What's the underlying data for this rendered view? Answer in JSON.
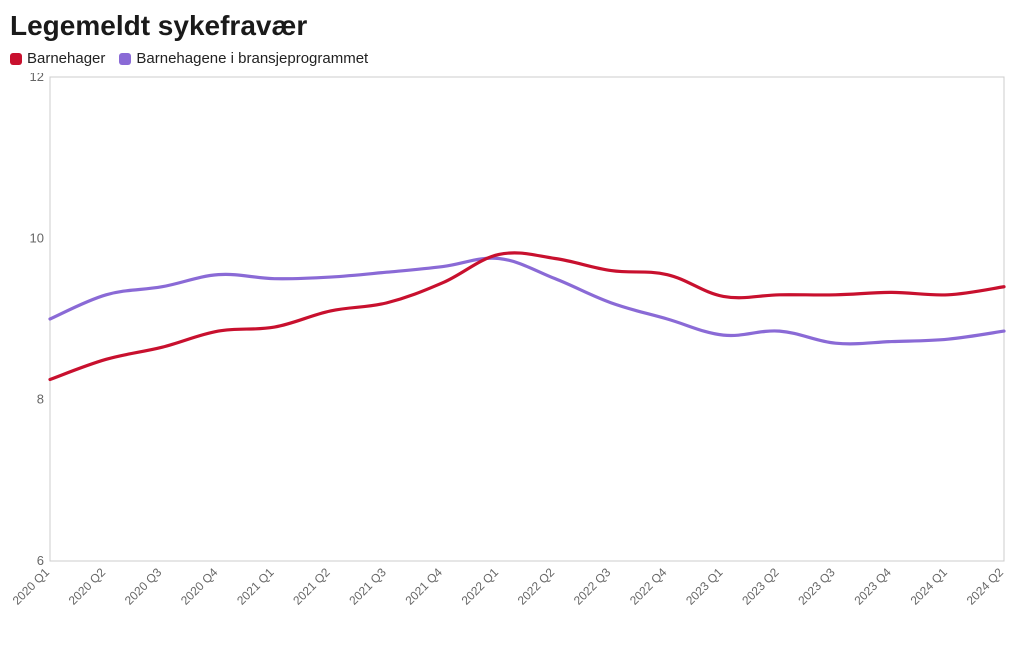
{
  "title": "Legemeldt sykefravær",
  "legend": [
    {
      "label": "Barnehager",
      "color": "#c8102e"
    },
    {
      "label": "Barnehagene i bransjeprogrammet",
      "color": "#8a6ad6"
    }
  ],
  "chart": {
    "type": "line",
    "ylim": [
      6,
      12
    ],
    "yticks": [
      6,
      8,
      10,
      12
    ],
    "x_labels": [
      "2020 Q1",
      "2020 Q2",
      "2020 Q3",
      "2020 Q4",
      "2021 Q1",
      "2021 Q2",
      "2021 Q3",
      "2021 Q4",
      "2022 Q1",
      "2022 Q2",
      "2022 Q3",
      "2022 Q4",
      "2023 Q1",
      "2023 Q2",
      "2023 Q3",
      "2023 Q4",
      "2024 Q1",
      "2024 Q2"
    ],
    "grid_color": "#e6e6e6",
    "border_color": "#cccccc",
    "background_color": "#ffffff",
    "line_width": 3.2,
    "series": [
      {
        "name": "Barnehager",
        "color": "#c8102e",
        "values": [
          8.25,
          8.5,
          8.65,
          8.85,
          8.9,
          9.1,
          9.2,
          9.45,
          9.8,
          9.75,
          9.6,
          9.55,
          9.28,
          9.3,
          9.3,
          9.33,
          9.3,
          9.4
        ]
      },
      {
        "name": "Barnehagene i bransjeprogrammet",
        "color": "#8a6ad6",
        "values": [
          9.0,
          9.3,
          9.4,
          9.55,
          9.5,
          9.52,
          9.58,
          9.65,
          9.75,
          9.5,
          9.2,
          9.0,
          8.8,
          8.85,
          8.7,
          8.72,
          8.75,
          8.85
        ]
      }
    ],
    "title_fontsize": 28,
    "label_fontsize": 13
  }
}
